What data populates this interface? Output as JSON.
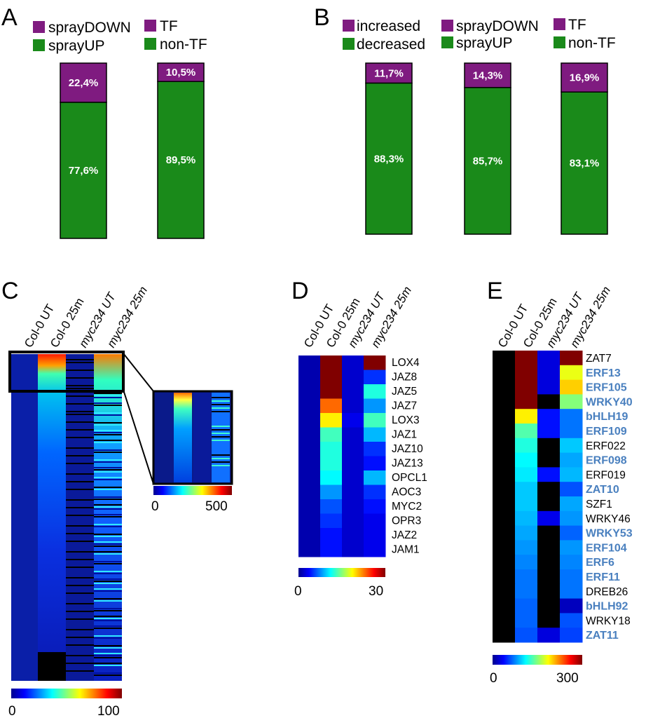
{
  "colors": {
    "purple": "#7f1b80",
    "green": "#1a8a1a",
    "tf_blue": "#4a80bf",
    "border": "#000000"
  },
  "panel_labels": [
    "A",
    "B",
    "C",
    "D",
    "E"
  ],
  "chart_data": [
    {
      "panel": "A",
      "type": "bar",
      "stacked": true,
      "legend": [
        {
          "label": "sprayDOWN",
          "color": "#7f1b80"
        },
        {
          "label": "TF",
          "color": "#7f1b80"
        },
        {
          "label": "sprayUP",
          "color": "#1a8a1a"
        },
        {
          "label": "non-TF",
          "color": "#1a8a1a"
        }
      ],
      "bars": [
        {
          "top": 22.4,
          "bottom": 77.6,
          "top_label": "22,4%",
          "bottom_label": "77,6%"
        },
        {
          "top": 10.5,
          "bottom": 89.5,
          "top_label": "10,5%",
          "bottom_label": "89,5%"
        }
      ]
    },
    {
      "panel": "B",
      "type": "bar",
      "stacked": true,
      "legend": [
        {
          "label": "increased",
          "color": "#7f1b80"
        },
        {
          "label": "sprayDOWN",
          "color": "#7f1b80"
        },
        {
          "label": "TF",
          "color": "#7f1b80"
        },
        {
          "label": "decreased",
          "color": "#1a8a1a"
        },
        {
          "label": "sprayUP",
          "color": "#1a8a1a"
        },
        {
          "label": "non-TF",
          "color": "#1a8a1a"
        }
      ],
      "bars": [
        {
          "top": 11.7,
          "bottom": 88.3,
          "top_label": "11,7%",
          "bottom_label": "88,3%"
        },
        {
          "top": 14.3,
          "bottom": 85.7,
          "top_label": "14,3%",
          "bottom_label": "85,7%"
        },
        {
          "top": 16.9,
          "bottom": 83.1,
          "top_label": "16,9%",
          "bottom_label": "83,1%"
        }
      ]
    },
    {
      "panel": "C",
      "type": "heatmap",
      "columns": [
        "Col-0 UT",
        "Col-0 25m",
        "myc234 UT",
        "myc234 25m"
      ],
      "scale_min": "0",
      "scale_max": "100",
      "inset_scale_min": "0",
      "inset_scale_max": "500"
    },
    {
      "panel": "D",
      "type": "heatmap",
      "columns": [
        "Col-0 UT",
        "Col-0 25m",
        "myc234 UT",
        "myc234 25m"
      ],
      "scale_min": "0",
      "scale_max": "30",
      "rows": [
        {
          "gene": "LOX4",
          "values": [
            1,
            30,
            2,
            30
          ]
        },
        {
          "gene": "JAZ8",
          "values": [
            1,
            30,
            2,
            5
          ]
        },
        {
          "gene": "JAZ5",
          "values": [
            1,
            30,
            2,
            12
          ]
        },
        {
          "gene": "JAZ7",
          "values": [
            1,
            23,
            2,
            8
          ]
        },
        {
          "gene": "LOX3",
          "values": [
            1,
            19,
            3,
            13
          ]
        },
        {
          "gene": "JAZ1",
          "values": [
            1,
            13,
            2,
            9
          ]
        },
        {
          "gene": "JAZ10",
          "values": [
            1,
            12,
            2,
            5
          ]
        },
        {
          "gene": "JAZ13",
          "values": [
            1,
            12,
            2,
            4
          ]
        },
        {
          "gene": "OPCL1",
          "values": [
            1,
            11,
            2,
            9
          ]
        },
        {
          "gene": "AOC3",
          "values": [
            1,
            8,
            2,
            5
          ]
        },
        {
          "gene": "MYC2",
          "values": [
            1,
            6,
            2,
            4
          ]
        },
        {
          "gene": "OPR3",
          "values": [
            1,
            5,
            2,
            3
          ]
        },
        {
          "gene": "JAZ2",
          "values": [
            1,
            4,
            2,
            3
          ]
        },
        {
          "gene": "JAM1",
          "values": [
            1,
            4,
            2,
            3
          ]
        }
      ]
    },
    {
      "panel": "E",
      "type": "heatmap",
      "columns": [
        "Col-0 UT",
        "Col-0 25m",
        "myc234 UT",
        "myc234 25m"
      ],
      "scale_min": "0",
      "scale_max": "300",
      "rows": [
        {
          "gene": "ZAT7",
          "tf": false,
          "values": [
            null,
            300,
            25,
            300
          ]
        },
        {
          "gene": "ERF13",
          "tf": true,
          "values": [
            null,
            300,
            25,
            180
          ]
        },
        {
          "gene": "ERF105",
          "tf": true,
          "values": [
            null,
            300,
            25,
            200
          ]
        },
        {
          "gene": "WRKY40",
          "tf": true,
          "values": [
            null,
            300,
            null,
            150
          ]
        },
        {
          "gene": "bHLH19",
          "tf": true,
          "values": [
            null,
            190,
            40,
            70
          ]
        },
        {
          "gene": "ERF109",
          "tf": true,
          "values": [
            null,
            135,
            40,
            70
          ]
        },
        {
          "gene": "ERF022",
          "tf": false,
          "values": [
            null,
            120,
            null,
            95
          ]
        },
        {
          "gene": "ERF098",
          "tf": true,
          "values": [
            null,
            110,
            null,
            85
          ]
        },
        {
          "gene": "ERF019",
          "tf": false,
          "values": [
            null,
            105,
            40,
            90
          ]
        },
        {
          "gene": "ZAT10",
          "tf": true,
          "values": [
            null,
            95,
            null,
            60
          ]
        },
        {
          "gene": "SZF1",
          "tf": false,
          "values": [
            null,
            95,
            null,
            85
          ]
        },
        {
          "gene": "WRKY46",
          "tf": false,
          "values": [
            null,
            90,
            30,
            80
          ]
        },
        {
          "gene": "WRKY53",
          "tf": true,
          "values": [
            null,
            85,
            null,
            65
          ]
        },
        {
          "gene": "ERF104",
          "tf": true,
          "values": [
            null,
            80,
            null,
            80
          ]
        },
        {
          "gene": "ERF6",
          "tf": true,
          "values": [
            null,
            75,
            null,
            75
          ]
        },
        {
          "gene": "ERF11",
          "tf": true,
          "values": [
            null,
            70,
            null,
            70
          ]
        },
        {
          "gene": "DREB26",
          "tf": false,
          "values": [
            null,
            70,
            null,
            70
          ]
        },
        {
          "gene": "bHLH92",
          "tf": true,
          "values": [
            null,
            65,
            null,
            15
          ]
        },
        {
          "gene": "WRKY18",
          "tf": false,
          "values": [
            null,
            65,
            null,
            60
          ]
        },
        {
          "gene": "ZAT11",
          "tf": true,
          "values": [
            null,
            60,
            25,
            55
          ]
        }
      ]
    }
  ]
}
